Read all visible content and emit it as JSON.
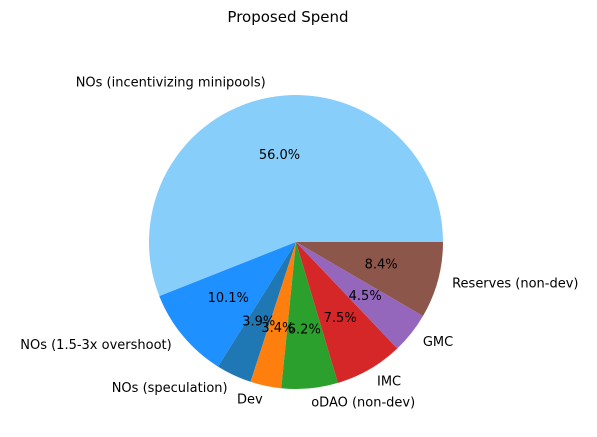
{
  "chart_data": {
    "type": "pie",
    "title": "Proposed Spend",
    "start_angle_deg": 0,
    "direction": "counterclockwise",
    "legend": "none",
    "slices": [
      {
        "label": "NOs (incentivizing minipools)",
        "value": 56.0,
        "pct_label": "56.0%",
        "color": "#87cefa"
      },
      {
        "label": "NOs (1.5-3x overshoot)",
        "value": 10.1,
        "pct_label": "10.1%",
        "color": "#1e90ff"
      },
      {
        "label": "NOs (speculation)",
        "value": 3.9,
        "pct_label": "3.9%",
        "color": "#1f77b4"
      },
      {
        "label": "Dev",
        "value": 3.4,
        "pct_label": "3.4%",
        "color": "#ff7f0e"
      },
      {
        "label": "oDAO (non-dev)",
        "value": 6.2,
        "pct_label": "6.2%",
        "color": "#2ca02c"
      },
      {
        "label": "IMC",
        "value": 7.5,
        "pct_label": "7.5%",
        "color": "#d62728"
      },
      {
        "label": "GMC",
        "value": 4.5,
        "pct_label": "4.5%",
        "color": "#9467bd"
      },
      {
        "label": "Reserves (non-dev)",
        "value": 8.4,
        "pct_label": "8.4%",
        "color": "#8c564b"
      }
    ]
  }
}
